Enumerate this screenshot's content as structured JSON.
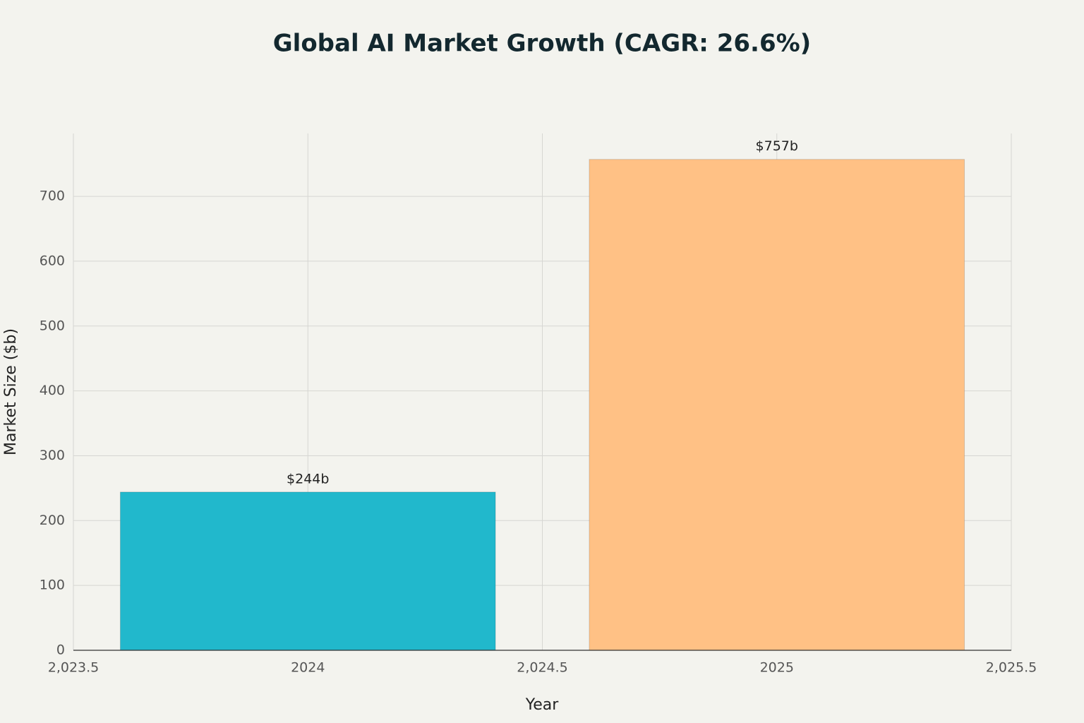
{
  "chart_data": {
    "type": "bar",
    "title": "Global AI Market Growth (CAGR: 26.6%)",
    "x_label": "Year",
    "y_label": "Market Size ($b)",
    "x": [
      2024,
      2025
    ],
    "values": [
      244,
      757
    ],
    "value_labels": [
      "$244b",
      "$757b"
    ],
    "colors": [
      "#21b8cc",
      "#ffc185"
    ],
    "xlim": [
      2023.5,
      2025.5
    ],
    "xticks": [
      {
        "value": 2023.5,
        "label": "2,023.5"
      },
      2024,
      {
        "value": 2024.5,
        "label": "2,024.5"
      },
      2025,
      {
        "value": 2025.5,
        "label": "2,025.5"
      }
    ],
    "ylim": [
      0,
      797
    ],
    "yticks": [
      0,
      100,
      200,
      300,
      400,
      500,
      600,
      700
    ],
    "grid": true
  }
}
